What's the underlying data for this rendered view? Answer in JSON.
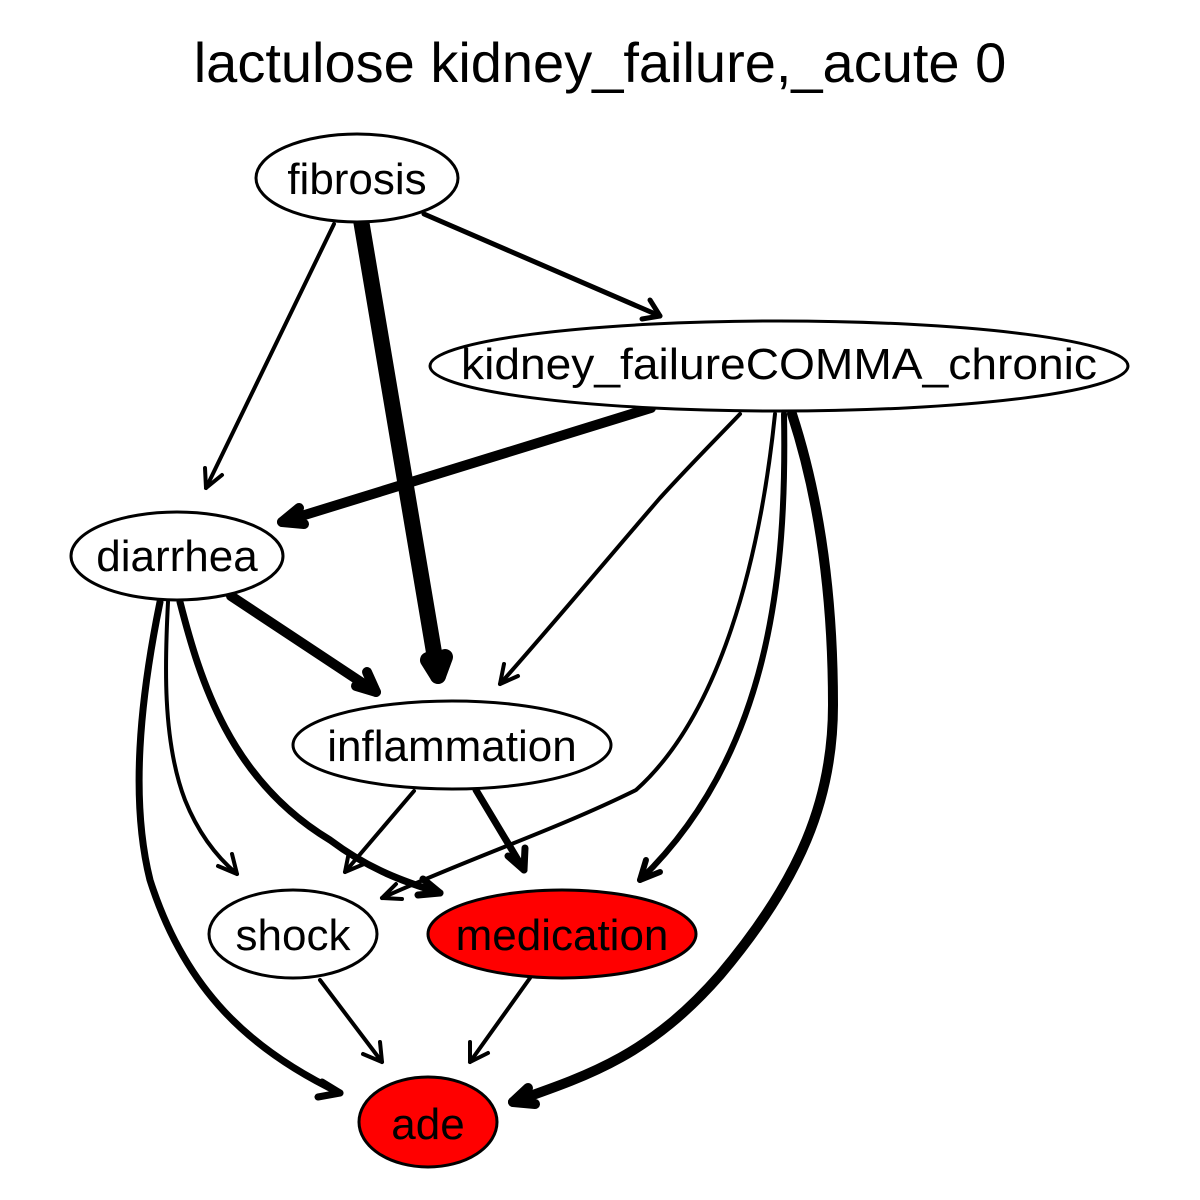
{
  "title": "lactulose kidney_failure,_acute 0",
  "colors": {
    "highlight": "#ff0000",
    "default_fill": "#ffffff",
    "stroke": "#000000"
  },
  "nodes": {
    "fibrosis": {
      "label": "fibrosis",
      "highlighted": false
    },
    "kidney_failure_chronic": {
      "label": "kidney_failureCOMMA_chronic",
      "highlighted": false
    },
    "diarrhea": {
      "label": "diarrhea",
      "highlighted": false
    },
    "inflammation": {
      "label": "inflammation",
      "highlighted": false
    },
    "shock": {
      "label": "shock",
      "highlighted": false
    },
    "medication": {
      "label": "medication",
      "highlighted": true
    },
    "ade": {
      "label": "ade",
      "highlighted": true
    }
  },
  "edges": [
    {
      "from": "fibrosis",
      "to": "kidney_failure_chronic",
      "weight": "thin"
    },
    {
      "from": "fibrosis",
      "to": "diarrhea",
      "weight": "thin"
    },
    {
      "from": "fibrosis",
      "to": "inflammation",
      "weight": "very-thick"
    },
    {
      "from": "kidney_failure_chronic",
      "to": "diarrhea",
      "weight": "thick"
    },
    {
      "from": "kidney_failure_chronic",
      "to": "inflammation",
      "weight": "thin"
    },
    {
      "from": "kidney_failure_chronic",
      "to": "shock",
      "weight": "thin"
    },
    {
      "from": "kidney_failure_chronic",
      "to": "medication",
      "weight": "medium"
    },
    {
      "from": "kidney_failure_chronic",
      "to": "ade",
      "weight": "thick"
    },
    {
      "from": "diarrhea",
      "to": "inflammation",
      "weight": "thick"
    },
    {
      "from": "diarrhea",
      "to": "shock",
      "weight": "thin"
    },
    {
      "from": "diarrhea",
      "to": "medication",
      "weight": "medium"
    },
    {
      "from": "diarrhea",
      "to": "ade",
      "weight": "medium"
    },
    {
      "from": "inflammation",
      "to": "shock",
      "weight": "thin"
    },
    {
      "from": "inflammation",
      "to": "medication",
      "weight": "medium"
    },
    {
      "from": "shock",
      "to": "ade",
      "weight": "thin"
    },
    {
      "from": "medication",
      "to": "ade",
      "weight": "thin"
    }
  ]
}
